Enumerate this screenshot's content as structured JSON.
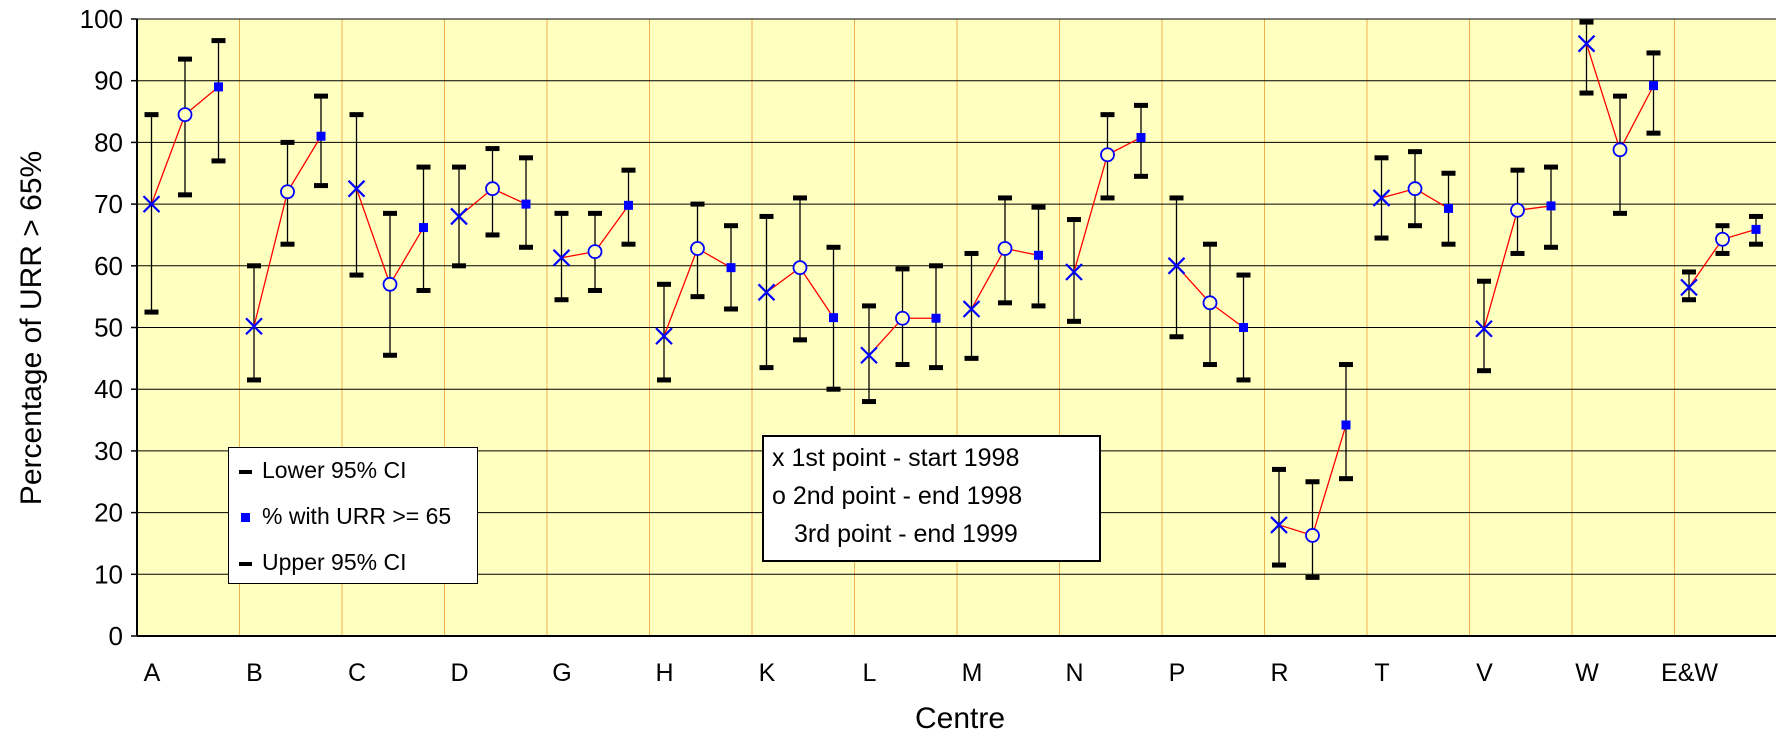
{
  "chart_data": {
    "type": "scatter",
    "xlabel": "Centre",
    "ylabel": "Percentage of URR > 65%",
    "ylim": [
      0,
      100
    ],
    "yticks": [
      0,
      10,
      20,
      30,
      40,
      50,
      60,
      70,
      80,
      90,
      100
    ],
    "grid": true,
    "categories": [
      "A",
      "B",
      "C",
      "D",
      "G",
      "H",
      "K",
      "L",
      "M",
      "N",
      "P",
      "R",
      "T",
      "V",
      "W",
      "E&W"
    ],
    "series": [
      {
        "name": "Lower 95% CI",
        "values": [
          [
            52.5,
            71.5,
            77
          ],
          [
            41.5,
            63.5,
            73
          ],
          [
            58.5,
            45.5,
            56
          ],
          [
            60,
            65,
            63
          ],
          [
            54.5,
            56,
            63.5
          ],
          [
            41.5,
            55,
            53
          ],
          [
            43.5,
            48,
            40
          ],
          [
            38,
            44,
            43.5
          ],
          [
            45,
            54,
            53.5
          ],
          [
            51,
            71,
            74.5
          ],
          [
            48.5,
            44,
            41.5
          ],
          [
            11.5,
            9.5,
            25.5
          ],
          [
            64.5,
            66.5,
            63.5
          ],
          [
            43,
            62,
            63
          ],
          [
            88,
            68.5,
            81.5
          ],
          [
            54.5,
            62,
            63.5
          ]
        ]
      },
      {
        "name": "% with URR >= 65",
        "values": [
          [
            70,
            84.5,
            89
          ],
          [
            50.2,
            72,
            81
          ],
          [
            72.5,
            57,
            66.2
          ],
          [
            68,
            72.5,
            70
          ],
          [
            61.3,
            62.3,
            69.8
          ],
          [
            48.6,
            62.8,
            59.7
          ],
          [
            55.7,
            59.7,
            51.6
          ],
          [
            45.5,
            51.5,
            51.5
          ],
          [
            53,
            62.8,
            61.7
          ],
          [
            59,
            78,
            80.8
          ],
          [
            60,
            54,
            50
          ],
          [
            18,
            16.3,
            34.2
          ],
          [
            71,
            72.5,
            69.3
          ],
          [
            49.8,
            69,
            69.7
          ],
          [
            96,
            78.8,
            89.2
          ],
          [
            56.5,
            64.3,
            65.9
          ]
        ]
      },
      {
        "name": "Upper 95% CI",
        "values": [
          [
            84.5,
            93.5,
            96.5
          ],
          [
            60,
            80,
            87.5
          ],
          [
            84.5,
            68.5,
            76
          ],
          [
            76,
            79,
            77.5
          ],
          [
            68.5,
            68.5,
            75.5
          ],
          [
            57,
            70,
            66.5
          ],
          [
            68,
            71,
            63
          ],
          [
            53.5,
            59.5,
            60
          ],
          [
            62,
            71,
            69.5
          ],
          [
            67.5,
            84.5,
            86
          ],
          [
            71,
            63.5,
            58.5
          ],
          [
            27,
            25,
            44
          ],
          [
            77.5,
            78.5,
            75
          ],
          [
            57.5,
            75.5,
            76
          ],
          [
            99.5,
            87.5,
            94.5
          ],
          [
            59,
            66.5,
            68
          ]
        ]
      }
    ],
    "point_meaning": [
      "x 1st point - start 1998",
      "o 2nd point - end 1998",
      "3rd  point - end 1999"
    ],
    "colors": {
      "plot_bg": "#ffffc0",
      "marker": "#0000ff",
      "connector": "#ff0000",
      "gridline": "#000000",
      "vgrid": "#f0b050",
      "errorbar": "#000000"
    }
  },
  "legend": {
    "lower": "Lower 95% CI",
    "mid": "% with URR >= 65",
    "upper": "Upper 95% CI"
  },
  "note": {
    "line1": "x 1st point - start 1998",
    "line2": "o 2nd point - end 1998",
    "line3": "3rd  point - end 1999"
  }
}
